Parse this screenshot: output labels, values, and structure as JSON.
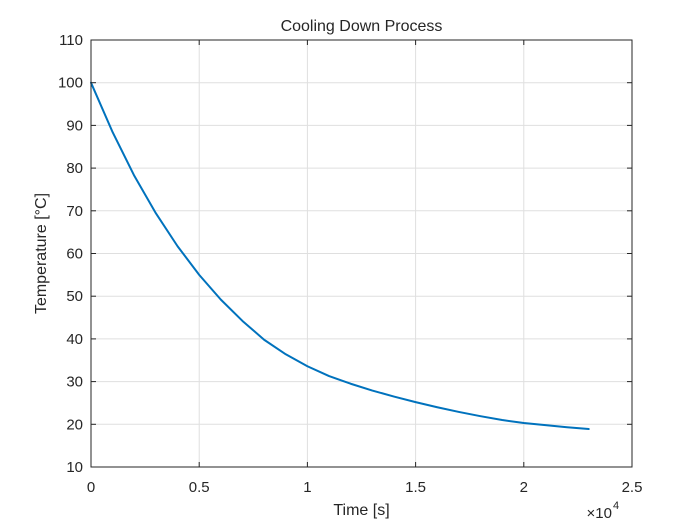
{
  "chart_data": {
    "type": "line",
    "title": "Cooling Down Process",
    "xlabel": "Time [s]",
    "ylabel": "Temperature [°C]",
    "x_multiplier_base": "×10",
    "x_multiplier_exp": "4",
    "xlim": [
      0,
      25000
    ],
    "ylim": [
      10,
      110
    ],
    "xticks": [
      0,
      5000,
      10000,
      15000,
      20000,
      25000
    ],
    "xtick_labels": [
      "0",
      "0.5",
      "1",
      "1.5",
      "2",
      "2.5"
    ],
    "yticks": [
      10,
      20,
      30,
      40,
      50,
      60,
      70,
      80,
      90,
      100,
      110
    ],
    "ytick_labels": [
      "10",
      "20",
      "30",
      "40",
      "50",
      "60",
      "70",
      "80",
      "90",
      "100",
      "110"
    ],
    "grid": true,
    "series": [
      {
        "color": "#0072BD",
        "x": [
          0,
          1000,
          2000,
          3000,
          4000,
          5000,
          6000,
          7000,
          8000,
          9000,
          10000,
          11000,
          12000,
          13000,
          14000,
          15000,
          16000,
          17000,
          18000,
          19000,
          20000,
          21000,
          22000,
          23000
        ],
        "y": [
          100,
          88.4,
          78.2,
          69.4,
          61.7,
          55.0,
          49.2,
          44.2,
          39.8,
          36.4,
          33.6,
          31.3,
          29.5,
          27.9,
          26.5,
          25.2,
          24.0,
          22.9,
          21.9,
          21.0,
          20.3,
          19.8,
          19.3,
          18.9
        ]
      }
    ]
  }
}
